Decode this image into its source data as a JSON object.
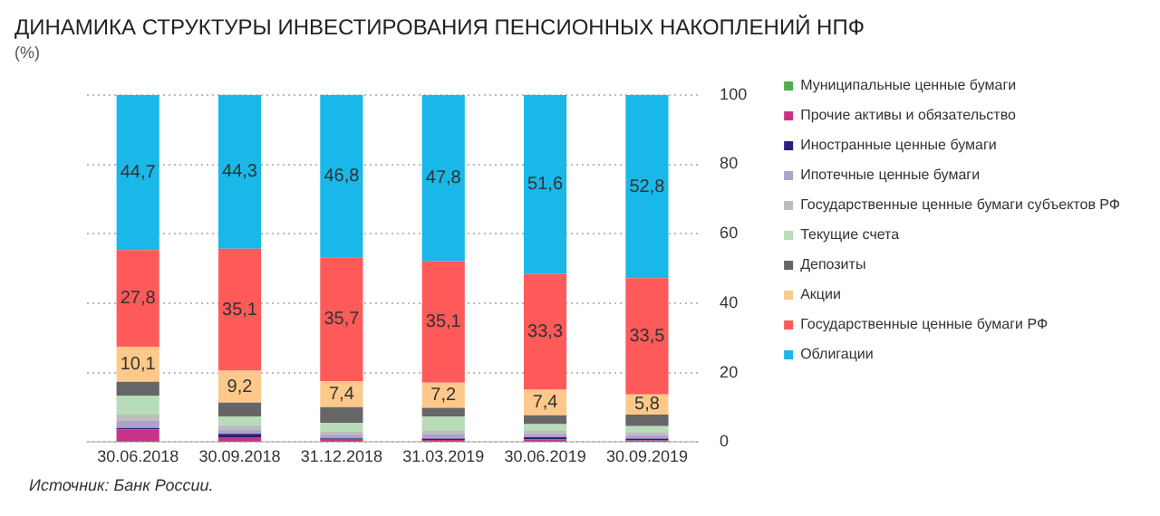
{
  "chart_data": {
    "type": "bar",
    "title": "ДИНАМИКА СТРУКТУРЫ ИНВЕСТИРОВАНИЯ ПЕНСИОННЫХ НАКОПЛЕНИЙ НПФ",
    "subtitle": "(%)",
    "annotations": [
      "Источник: Банк России."
    ],
    "stacked": true,
    "categories": [
      "30.06.2018",
      "30.09.2018",
      "31.12.2018",
      "31.03.2019",
      "30.06.2019",
      "30.09.2019"
    ],
    "series": [
      {
        "name": "Муниципальные ценные бумаги",
        "color": "#4caf50",
        "values": [
          0.1,
          0.1,
          0.1,
          0.1,
          0.1,
          0.1
        ]
      },
      {
        "name": "Прочие активы и обязательство",
        "color": "#c8338a",
        "values": [
          3.5,
          1.3,
          0.8,
          0.5,
          0.7,
          0.4
        ]
      },
      {
        "name": "Иностранные ценные бумаги",
        "color": "#2b1f7a",
        "values": [
          0.5,
          1.0,
          0.2,
          0.4,
          0.6,
          0.5
        ]
      },
      {
        "name": "Ипотечные ценные бумаги",
        "color": "#a9a4c9",
        "values": [
          2.0,
          1.3,
          1.0,
          1.2,
          1.0,
          1.0
        ]
      },
      {
        "name": "Государственные ценные бумаги субъектов РФ",
        "color": "#bdbdbd",
        "values": [
          1.8,
          1.2,
          1.0,
          1.2,
          1.0,
          0.9
        ]
      },
      {
        "name": "Текущие счета",
        "color": "#b7dcb8",
        "values": [
          5.5,
          2.5,
          2.5,
          4.0,
          1.8,
          1.7
        ]
      },
      {
        "name": "Депозиты",
        "color": "#666666",
        "values": [
          4.0,
          4.0,
          4.5,
          2.5,
          2.5,
          3.3
        ]
      },
      {
        "name": "Акции",
        "color": "#fdc98a",
        "values": [
          10.1,
          9.2,
          7.4,
          7.2,
          7.4,
          5.8
        ],
        "value_labels": [
          "10,1",
          "9,2",
          "7,4",
          "7,2",
          "7,4",
          "5,8"
        ]
      },
      {
        "name": "Государственные ценные бумаги РФ",
        "color": "#ff5a5a",
        "values": [
          27.8,
          35.1,
          35.7,
          35.1,
          33.3,
          33.5
        ],
        "value_labels": [
          "27,8",
          "35,1",
          "35,7",
          "35,1",
          "33,3",
          "33,5"
        ]
      },
      {
        "name": "Облигации",
        "color": "#1ab8e8",
        "values": [
          44.7,
          44.3,
          46.8,
          47.8,
          51.6,
          52.8
        ],
        "value_labels": [
          "44,7",
          "44,3",
          "46,8",
          "47,8",
          "51,6",
          "52,8"
        ]
      }
    ],
    "ylim": [
      0,
      100
    ],
    "yticks": [
      0,
      20,
      40,
      60,
      80,
      100
    ],
    "grid": "y",
    "legend": "right"
  }
}
